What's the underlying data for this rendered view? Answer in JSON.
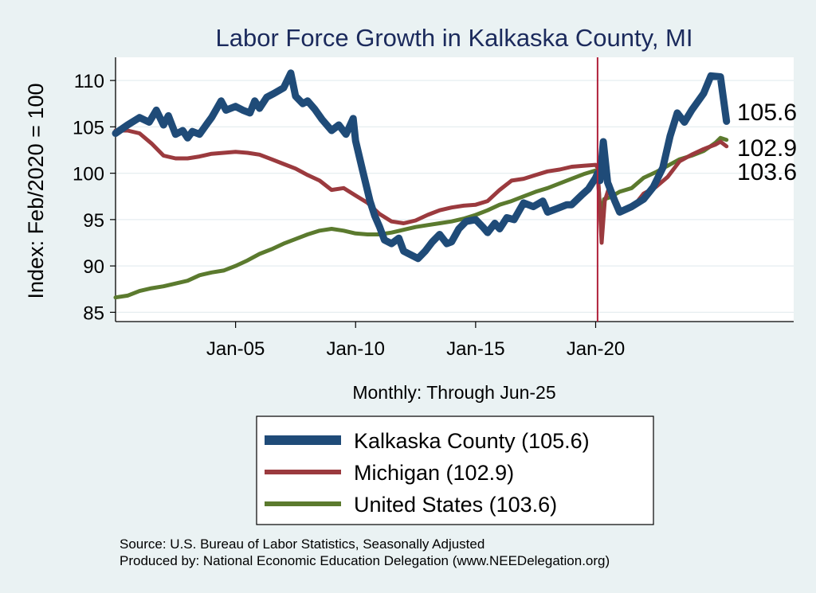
{
  "chart_data": {
    "type": "line",
    "title": "Labor Force Growth in Kalkaska  County, MI",
    "xlabel": "Monthly: Through Jun-25",
    "ylabel": "Index: Feb/2020 = 100",
    "xlim": [
      2000.0,
      2028.25
    ],
    "ylim": [
      84,
      112.5
    ],
    "yticks": [
      85,
      90,
      95,
      100,
      105,
      110
    ],
    "xticks": [
      {
        "x": 2005.0,
        "label": "Jan-05"
      },
      {
        "x": 2010.0,
        "label": "Jan-10"
      },
      {
        "x": 2015.0,
        "label": "Jan-15"
      },
      {
        "x": 2020.0,
        "label": "Jan-20"
      }
    ],
    "reference_line": {
      "x": 2020.08,
      "color": "#b0203a"
    },
    "grid": "horizontal",
    "legend": "below",
    "series": [
      {
        "name": "Kalkaska  County (105.6)",
        "color": "#1f4b78",
        "end_label": "105.6",
        "points": [
          [
            2000.0,
            104.3
          ],
          [
            2000.5,
            105.2
          ],
          [
            2001.0,
            106.0
          ],
          [
            2001.4,
            105.5
          ],
          [
            2001.7,
            106.8
          ],
          [
            2002.0,
            105.2
          ],
          [
            2002.2,
            106.2
          ],
          [
            2002.5,
            104.2
          ],
          [
            2002.8,
            104.6
          ],
          [
            2003.0,
            103.8
          ],
          [
            2003.2,
            104.5
          ],
          [
            2003.5,
            104.2
          ],
          [
            2003.8,
            105.3
          ],
          [
            2004.0,
            106.0
          ],
          [
            2004.4,
            107.8
          ],
          [
            2004.6,
            106.8
          ],
          [
            2005.0,
            107.2
          ],
          [
            2005.3,
            106.8
          ],
          [
            2005.6,
            106.5
          ],
          [
            2005.8,
            107.8
          ],
          [
            2006.0,
            107.0
          ],
          [
            2006.3,
            108.2
          ],
          [
            2006.6,
            108.6
          ],
          [
            2007.0,
            109.2
          ],
          [
            2007.3,
            110.8
          ],
          [
            2007.5,
            108.3
          ],
          [
            2007.8,
            107.5
          ],
          [
            2008.0,
            107.8
          ],
          [
            2008.3,
            106.9
          ],
          [
            2008.6,
            105.8
          ],
          [
            2009.0,
            104.6
          ],
          [
            2009.3,
            105.2
          ],
          [
            2009.6,
            104.2
          ],
          [
            2009.9,
            105.9
          ],
          [
            2010.0,
            103.5
          ],
          [
            2010.3,
            100.2
          ],
          [
            2010.6,
            97.0
          ],
          [
            2010.8,
            95.4
          ],
          [
            2011.0,
            94.2
          ],
          [
            2011.2,
            92.8
          ],
          [
            2011.5,
            92.4
          ],
          [
            2011.8,
            93.0
          ],
          [
            2012.0,
            91.6
          ],
          [
            2012.3,
            91.2
          ],
          [
            2012.6,
            90.8
          ],
          [
            2012.9,
            91.6
          ],
          [
            2013.2,
            92.6
          ],
          [
            2013.5,
            93.4
          ],
          [
            2013.8,
            92.4
          ],
          [
            2014.0,
            92.6
          ],
          [
            2014.3,
            94.0
          ],
          [
            2014.6,
            94.8
          ],
          [
            2015.0,
            95.0
          ],
          [
            2015.3,
            94.2
          ],
          [
            2015.5,
            93.6
          ],
          [
            2015.8,
            94.6
          ],
          [
            2016.0,
            94.0
          ],
          [
            2016.3,
            95.2
          ],
          [
            2016.6,
            95.0
          ],
          [
            2017.0,
            96.8
          ],
          [
            2017.4,
            96.4
          ],
          [
            2017.8,
            97.0
          ],
          [
            2018.0,
            95.8
          ],
          [
            2018.4,
            96.2
          ],
          [
            2018.8,
            96.6
          ],
          [
            2019.0,
            96.6
          ],
          [
            2019.4,
            97.6
          ],
          [
            2019.7,
            98.3
          ],
          [
            2020.0,
            99.5
          ],
          [
            2020.08,
            100.0
          ],
          [
            2020.18,
            99.2
          ],
          [
            2020.32,
            103.4
          ],
          [
            2020.5,
            99.0
          ],
          [
            2020.8,
            97.0
          ],
          [
            2021.0,
            95.8
          ],
          [
            2021.5,
            96.4
          ],
          [
            2022.0,
            97.2
          ],
          [
            2022.4,
            98.5
          ],
          [
            2022.8,
            100.6
          ],
          [
            2023.1,
            104.0
          ],
          [
            2023.4,
            106.5
          ],
          [
            2023.7,
            105.5
          ],
          [
            2024.0,
            106.8
          ],
          [
            2024.5,
            108.6
          ],
          [
            2024.8,
            110.5
          ],
          [
            2025.2,
            110.4
          ],
          [
            2025.45,
            105.6
          ]
        ]
      },
      {
        "name": "Michigan (102.9)",
        "color": "#9b3a3e",
        "end_label": "102.9",
        "points": [
          [
            2000.0,
            104.6
          ],
          [
            2000.5,
            104.6
          ],
          [
            2001.0,
            104.3
          ],
          [
            2001.5,
            103.2
          ],
          [
            2002.0,
            101.9
          ],
          [
            2002.5,
            101.6
          ],
          [
            2003.0,
            101.6
          ],
          [
            2003.5,
            101.8
          ],
          [
            2004.0,
            102.1
          ],
          [
            2004.5,
            102.2
          ],
          [
            2005.0,
            102.3
          ],
          [
            2005.5,
            102.2
          ],
          [
            2006.0,
            102.0
          ],
          [
            2006.5,
            101.5
          ],
          [
            2007.0,
            101.0
          ],
          [
            2007.5,
            100.5
          ],
          [
            2008.0,
            99.8
          ],
          [
            2008.5,
            99.2
          ],
          [
            2009.0,
            98.2
          ],
          [
            2009.5,
            98.4
          ],
          [
            2010.0,
            97.6
          ],
          [
            2010.5,
            96.8
          ],
          [
            2011.0,
            95.6
          ],
          [
            2011.5,
            94.8
          ],
          [
            2012.0,
            94.6
          ],
          [
            2012.5,
            94.9
          ],
          [
            2013.0,
            95.5
          ],
          [
            2013.5,
            96.0
          ],
          [
            2014.0,
            96.3
          ],
          [
            2014.5,
            96.5
          ],
          [
            2015.0,
            96.6
          ],
          [
            2015.5,
            97.0
          ],
          [
            2016.0,
            98.2
          ],
          [
            2016.5,
            99.2
          ],
          [
            2017.0,
            99.4
          ],
          [
            2017.5,
            99.8
          ],
          [
            2018.0,
            100.2
          ],
          [
            2018.5,
            100.4
          ],
          [
            2019.0,
            100.7
          ],
          [
            2019.5,
            100.8
          ],
          [
            2020.0,
            100.9
          ],
          [
            2020.08,
            100.6
          ],
          [
            2020.18,
            96.0
          ],
          [
            2020.25,
            92.5
          ],
          [
            2020.38,
            97.0
          ],
          [
            2020.6,
            98.8
          ],
          [
            2020.9,
            96.2
          ],
          [
            2021.2,
            96.0
          ],
          [
            2021.6,
            96.5
          ],
          [
            2022.0,
            97.8
          ],
          [
            2022.5,
            98.5
          ],
          [
            2023.0,
            99.6
          ],
          [
            2023.5,
            101.3
          ],
          [
            2024.0,
            102.0
          ],
          [
            2024.5,
            102.6
          ],
          [
            2025.0,
            103.1
          ],
          [
            2025.2,
            103.4
          ],
          [
            2025.45,
            102.9
          ]
        ]
      },
      {
        "name": "United States (103.6)",
        "color": "#5b7a2e",
        "end_label": "103.6",
        "points": [
          [
            2000.0,
            86.6
          ],
          [
            2000.5,
            86.8
          ],
          [
            2001.0,
            87.3
          ],
          [
            2001.5,
            87.6
          ],
          [
            2002.0,
            87.8
          ],
          [
            2002.5,
            88.1
          ],
          [
            2003.0,
            88.4
          ],
          [
            2003.5,
            89.0
          ],
          [
            2004.0,
            89.3
          ],
          [
            2004.5,
            89.5
          ],
          [
            2005.0,
            90.0
          ],
          [
            2005.5,
            90.6
          ],
          [
            2006.0,
            91.3
          ],
          [
            2006.5,
            91.8
          ],
          [
            2007.0,
            92.4
          ],
          [
            2007.5,
            92.9
          ],
          [
            2008.0,
            93.4
          ],
          [
            2008.5,
            93.8
          ],
          [
            2009.0,
            94.0
          ],
          [
            2009.5,
            93.8
          ],
          [
            2010.0,
            93.5
          ],
          [
            2010.5,
            93.4
          ],
          [
            2011.0,
            93.4
          ],
          [
            2011.5,
            93.6
          ],
          [
            2012.0,
            93.9
          ],
          [
            2012.5,
            94.2
          ],
          [
            2013.0,
            94.4
          ],
          [
            2013.5,
            94.6
          ],
          [
            2014.0,
            94.8
          ],
          [
            2014.5,
            95.1
          ],
          [
            2015.0,
            95.5
          ],
          [
            2015.5,
            96.0
          ],
          [
            2016.0,
            96.6
          ],
          [
            2016.5,
            97.0
          ],
          [
            2017.0,
            97.5
          ],
          [
            2017.5,
            98.0
          ],
          [
            2018.0,
            98.4
          ],
          [
            2018.5,
            98.9
          ],
          [
            2019.0,
            99.4
          ],
          [
            2019.5,
            99.9
          ],
          [
            2020.0,
            100.3
          ],
          [
            2020.08,
            100.0
          ],
          [
            2020.22,
            95.0
          ],
          [
            2020.35,
            97.2
          ],
          [
            2020.6,
            97.4
          ],
          [
            2021.0,
            98.0
          ],
          [
            2021.5,
            98.4
          ],
          [
            2022.0,
            99.5
          ],
          [
            2022.5,
            100.1
          ],
          [
            2023.0,
            100.8
          ],
          [
            2023.5,
            101.5
          ],
          [
            2024.0,
            101.9
          ],
          [
            2024.5,
            102.4
          ],
          [
            2025.0,
            103.3
          ],
          [
            2025.2,
            103.8
          ],
          [
            2025.45,
            103.6
          ]
        ]
      }
    ]
  },
  "source_text": "Source: U.S. Bureau of Labor Statistics, Seasonally Adjusted",
  "producer_text": "Produced by: National Economic Education Delegation (www.NEEDelegation.org)"
}
